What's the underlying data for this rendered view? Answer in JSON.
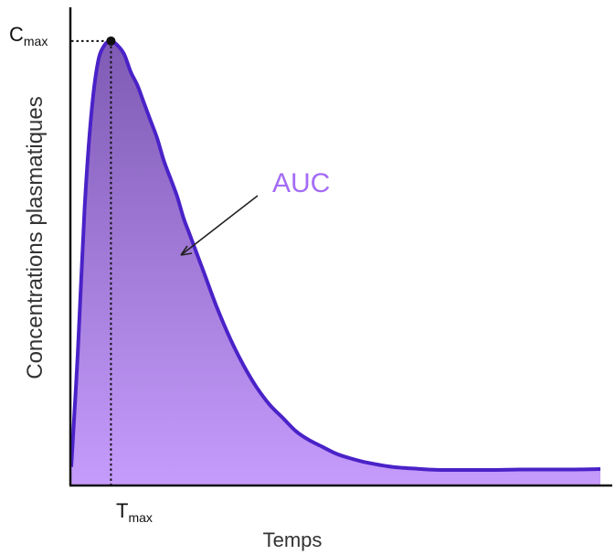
{
  "chart_data": {
    "type": "area",
    "title": "",
    "xlabel": "Temps",
    "ylabel": "Concentrations plasmatiques",
    "x": [
      0,
      0.5,
      1,
      1.5,
      2,
      2.5,
      3,
      3.5,
      4,
      4.5,
      5,
      5.5,
      6,
      6.5,
      7,
      7.5,
      8,
      8.5,
      9,
      10,
      11,
      12,
      13,
      14,
      15,
      16,
      17,
      18,
      19,
      20,
      21,
      22,
      23,
      24,
      25,
      26,
      27,
      28,
      30,
      32,
      34,
      36,
      38,
      40
    ],
    "series": [
      {
        "values": [
          0.04,
          0.3,
          0.62,
          0.83,
          0.95,
          0.99,
          1.0,
          0.99,
          0.97,
          0.93,
          0.9,
          0.86,
          0.82,
          0.78,
          0.73,
          0.69,
          0.65,
          0.6,
          0.56,
          0.48,
          0.4,
          0.33,
          0.27,
          0.22,
          0.18,
          0.15,
          0.12,
          0.1,
          0.085,
          0.07,
          0.06,
          0.052,
          0.046,
          0.041,
          0.038,
          0.036,
          0.034,
          0.033,
          0.033,
          0.033,
          0.034,
          0.034,
          0.034,
          0.035
        ]
      }
    ],
    "xlim": [
      0,
      40
    ],
    "ylim": [
      0,
      1.08
    ],
    "grid": false,
    "ticks": {
      "cmax": {
        "main": "C",
        "sub": "max",
        "value": 1.0
      },
      "tmax": {
        "main": "T",
        "sub": "max",
        "value": 3
      }
    },
    "annotations": [
      {
        "text": "AUC"
      }
    ],
    "colors": {
      "line": "#4a22c8",
      "fill_top": "#7f5bb5",
      "fill_bottom": "#c59bfb",
      "annotation": "#a46cf4"
    }
  }
}
